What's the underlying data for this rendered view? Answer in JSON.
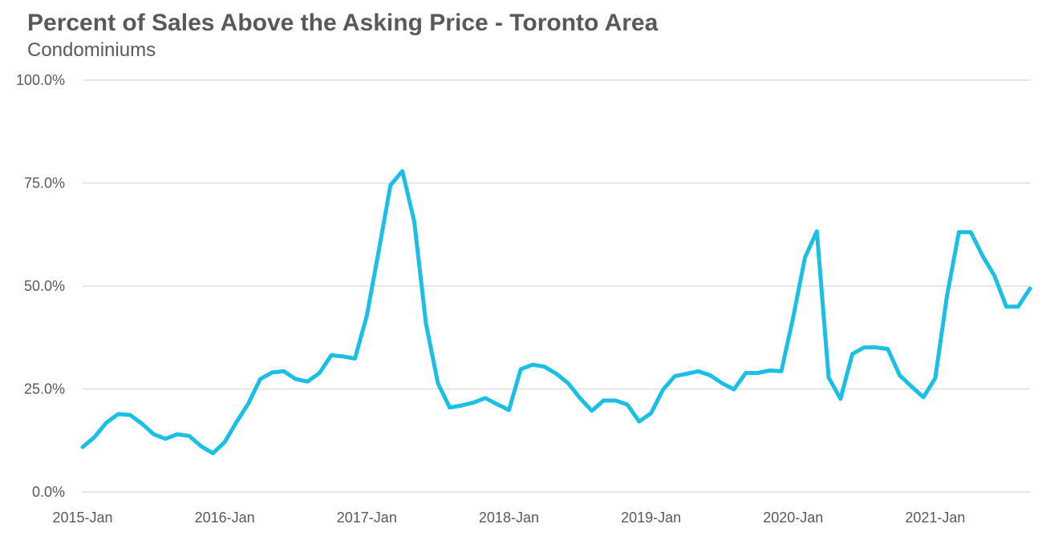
{
  "chart_data": {
    "type": "line",
    "title": "Percent of Sales Above the Asking Price - Toronto Area",
    "subtitle": "Condominiums",
    "xlabel": "",
    "ylabel": "",
    "ylim": [
      0,
      100
    ],
    "yticks": [
      "0.0%",
      "25.0%",
      "50.0%",
      "75.0%",
      "100.0%"
    ],
    "ytick_values": [
      0,
      25,
      50,
      75,
      100
    ],
    "xticks": [
      "2015-Jan",
      "2016-Jan",
      "2017-Jan",
      "2018-Jan",
      "2019-Jan",
      "2020-Jan",
      "2021-Jan"
    ],
    "xtick_months": [
      "2015-01",
      "2016-01",
      "2017-01",
      "2018-01",
      "2019-01",
      "2020-01",
      "2021-01"
    ],
    "grid": true,
    "legend": "none",
    "line_color": "#1ABFE6",
    "grid_color": "#D9D9D9",
    "x": [
      "2015-01",
      "2015-02",
      "2015-03",
      "2015-04",
      "2015-05",
      "2015-06",
      "2015-07",
      "2015-08",
      "2015-09",
      "2015-10",
      "2015-11",
      "2015-12",
      "2016-01",
      "2016-02",
      "2016-03",
      "2016-04",
      "2016-05",
      "2016-06",
      "2016-07",
      "2016-08",
      "2016-09",
      "2016-10",
      "2016-11",
      "2016-12",
      "2017-01",
      "2017-02",
      "2017-03",
      "2017-04",
      "2017-05",
      "2017-06",
      "2017-07",
      "2017-08",
      "2017-09",
      "2017-10",
      "2017-11",
      "2017-12",
      "2018-01",
      "2018-02",
      "2018-03",
      "2018-04",
      "2018-05",
      "2018-06",
      "2018-07",
      "2018-08",
      "2018-09",
      "2018-10",
      "2018-11",
      "2018-12",
      "2019-01",
      "2019-02",
      "2019-03",
      "2019-04",
      "2019-05",
      "2019-06",
      "2019-07",
      "2019-08",
      "2019-09",
      "2019-10",
      "2019-11",
      "2019-12",
      "2020-01",
      "2020-02",
      "2020-03",
      "2020-04",
      "2020-05",
      "2020-06",
      "2020-07",
      "2020-08",
      "2020-09",
      "2020-10",
      "2020-11",
      "2020-12",
      "2021-01",
      "2021-02",
      "2021-03",
      "2021-04",
      "2021-05",
      "2021-06",
      "2021-07",
      "2021-08",
      "2021-09"
    ],
    "series": [
      {
        "values": [
          10.9,
          13.3,
          16.8,
          18.9,
          18.7,
          16.6,
          14.0,
          12.9,
          14.0,
          13.6,
          11.1,
          9.4,
          12.1,
          17.0,
          21.5,
          27.4,
          29.0,
          29.3,
          27.4,
          26.8,
          28.9,
          33.2,
          32.9,
          32.4,
          42.8,
          58.5,
          74.5,
          77.9,
          65.7,
          40.8,
          26.4,
          20.5,
          21.0,
          21.7,
          22.8,
          21.3,
          19.9,
          29.8,
          30.9,
          30.4,
          28.7,
          26.4,
          22.8,
          19.7,
          22.2,
          22.2,
          21.2,
          17.1,
          19.1,
          24.8,
          28.1,
          28.7,
          29.3,
          28.3,
          26.4,
          24.9,
          28.9,
          28.9,
          29.5,
          29.3,
          42.4,
          56.9,
          63.3,
          27.8,
          22.6,
          33.5,
          35.1,
          35.1,
          34.7,
          28.3,
          25.6,
          23.0,
          27.6,
          47.8,
          63.1,
          63.1,
          57.3,
          52.5,
          45.0,
          45.0,
          49.4
        ]
      }
    ]
  }
}
